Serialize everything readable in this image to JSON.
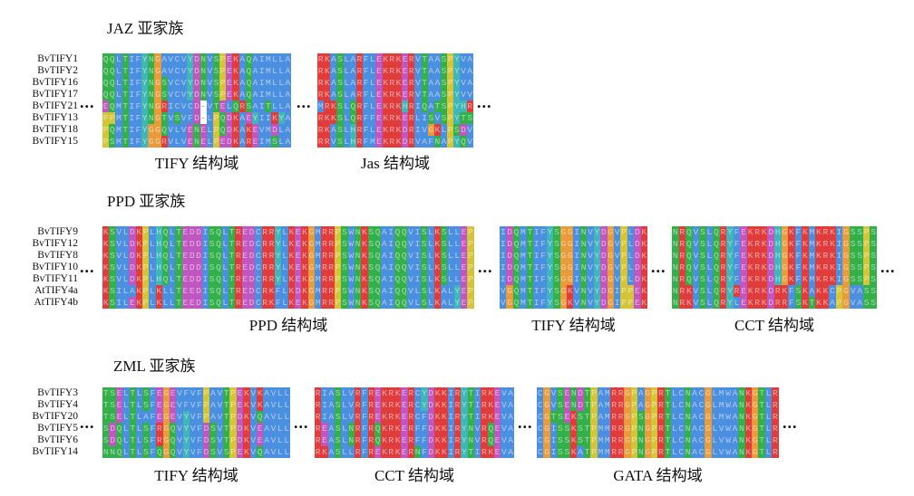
{
  "colors": {
    "hydrophobic": "#4a8fe0",
    "basic": "#e03c3c",
    "acidic": "#c056c0",
    "polar": "#33b04a",
    "glycine": "#e89b3a",
    "proline": "#d4c437",
    "aromatic": "#3fb6b8",
    "gap": "#ffffff"
  },
  "sections": [
    {
      "title": "JAZ 亚家族",
      "labels": [
        "BvTIFY1",
        "BvTIFY2",
        "BvTIFY16",
        "BvTIFY17",
        "BvTIFY21",
        "BvTIFY13",
        "BvTIFY18",
        "BvTIFY15"
      ],
      "blocks": [
        {
          "domain": "TIFY 结构域",
          "rows": [
            "QQLTIFYNGAVCVYDNVSPEKAQAIMLLA",
            "QQLTIFYNGAVCVYDNVSPEKAQAIMLLA",
            "QQLTIFYNGSVCVYDNVSPEKAQAIMLLA",
            "QQLTIFYNGSVCVYDNVSPEKAQAIMLLA",
            "EQMTIFYNGRICVCD-VTELQRSAITLLA",
            "PPMTIFYNGTVSVFD-LPQDKAEYIIKYA",
            "PQMTIFYGGQVLVENELPQDKAKEVMDLA",
            "PSMTIFYGGRVLVENELPEDKAREIMSLA"
          ]
        },
        {
          "domain": "Jas 结构域",
          "rows": [
            "RKASLARFLEKRKERVTAASPYVA",
            "RKASLARFLEKRKERVTAASPYVA",
            "RKASLARFLEKRKERVTAASPYVA",
            "RKASLARFLEKRKERVTAASPYVV",
            "MRKSLQRFLEKRKHRIQATSPYHR",
            "RKKSLQRFFEKRKERLISVSPYTS",
            "RKASLHRFLEKRKDRIVGKLPSDV",
            "RRVSLHRFMEKRKDRVAFNAPYQV"
          ]
        }
      ]
    },
    {
      "title": "PPD 亚家族",
      "labels": [
        "BvTIFY9",
        "BvTIFY12",
        "BvTIFY8",
        "BvTIFY10",
        "BvTIFY11",
        "AtTIFY4a",
        "AtTIFY4b"
      ],
      "blocks": [
        {
          "domain": "PPD 结构域",
          "rows": [
            "KSVLDKPLHQLTEDDISQLTREDCRRYLKEKGMRRPSWNKSQAIQQVISLKSLLEP",
            "KSVLDKPLHQLTEDDISQLTREDCRRYLKEKGMRRPSWNKSQAIQQVISLKSLLEP",
            "KSVLDKPLHQLTEDDISQLTREDCRRYLKEKGMRRPSWNKSQAIQQVISLKSLLEP",
            "KSVLDKPLHQLTEDDISQLTREDCRRYLKEKGMRRPSWNKSQAIQQVISLKSLLEP",
            "KSVLDKPLHQLTEDDISQLTREDCRRYLKEKGMRRPSWNKSQAIQQVISLKSLLEP",
            "KSILAKPLKLLTEEDISQLTREDCRKFLKDKGMRRPSWNKSQAIQQVLSLKALYEP",
            "KSILEKPLKLLTEEDISQLTREDCRKFLKEKGMRRPSWNKSQAIQQVLSLKALYEP"
          ]
        },
        {
          "domain": "TIFY 结构域",
          "rows": [
            "IDQMTIFYSGGINVYDGVPLDK",
            "IDQMTIFYSGGINVYDGVPLDK",
            "IDQMTIFYSGGINVYDGVPLDK",
            "IDQMTIFYSGGINVYDGVPLDK",
            "IDQMTIFYSGGINVYDGVPLDK",
            "VGQMTIFYSGKVNVYDGIPPEK",
            "VGQMTIFYSGKVNVYDGIPPEK"
          ]
        },
        {
          "domain": "CCT 结构域",
          "rows": [
            "NRQVSLQRYFEKRKDHGKFKMKRKIGSSPS",
            "NRQVSLQRYFEKRKDHGKFKMKRKIGSSPS",
            "NRQVSLQRYFEKRKDHGKFKMKRKIGSSPS",
            "NRQVSLQRYFEKRKDHGKFKMKRKIGSSPS",
            "NRQVSLQRYFEKRKDHGKFKMKRKIGSSPS",
            "NRKVSLQRYREKRKDRKFSKAKKCPGVASS",
            "NRKVSLQRYLEKRKDRRFSKTKKAPGVASS"
          ]
        }
      ]
    },
    {
      "title": "ZML 亚家族",
      "labels": [
        "BvTIFY3",
        "BvTIFY4",
        "BvTIFY20",
        "BvTIFY5",
        "BvTIFY6",
        "BvTIFY14"
      ],
      "blocks": [
        {
          "domain": "TIFY 结构域",
          "rows": [
            "TSELTLSFEGEVFVFPAVTPEKVKAVLL",
            "TSELTLSFEGEVFVFPAVTPEKVKAVLL",
            "TSELTLAFEGEVYVFPAVTPDKVQAVLL",
            "SDQLTLSFRGQVYVFDSVTPDKVEAVLL",
            "SDQLTLSFRGQVYVFDSVTPDKVEAVLL",
            "NNQLTLSFQGQVYVFDSVSPEKVQAVLL"
          ]
        },
        {
          "domain": "CCT 结构域",
          "rows": [
            "RIASLVRFREKRKERCYDKKIRYTIRKEVA",
            "RIASLVRFREKRKERCYDKKIRYTIRKEVA",
            "RIASLVRFREKRKERCFDKKIRYTIRKEVA",
            "REASLNRFRQKRKERFFDKKIRYNVRQEVA",
            "REASLNRFRQKRKERFFDKKIRYNVRQEVA",
            "RKASLLRFREKRKERNFDKKIRYTIRKEVA"
          ]
        },
        {
          "domain": "GATA 结构域",
          "rows": [
            "CGVSENDTPAMRRGPAGPRTLCNACGLMWANKGTLR",
            "CGVSENDTPAMRRGPAGPRTLCNACGLMWANKGTLR",
            "CGTSEKSTPAMRRGPSGPRTLCNACGLMWANKGTLR",
            "CGISSKSTPMMRRGPNGPRTLCNACGLVWANKGTLR",
            "CGISSKSTPMMRRGPNGPRTLCNACGLVWANKGTLR",
            "CGISSKATPMMRRGPNGPRTLCNACGLVWANKGTLR"
          ]
        }
      ]
    }
  ],
  "ellipsis": "..."
}
